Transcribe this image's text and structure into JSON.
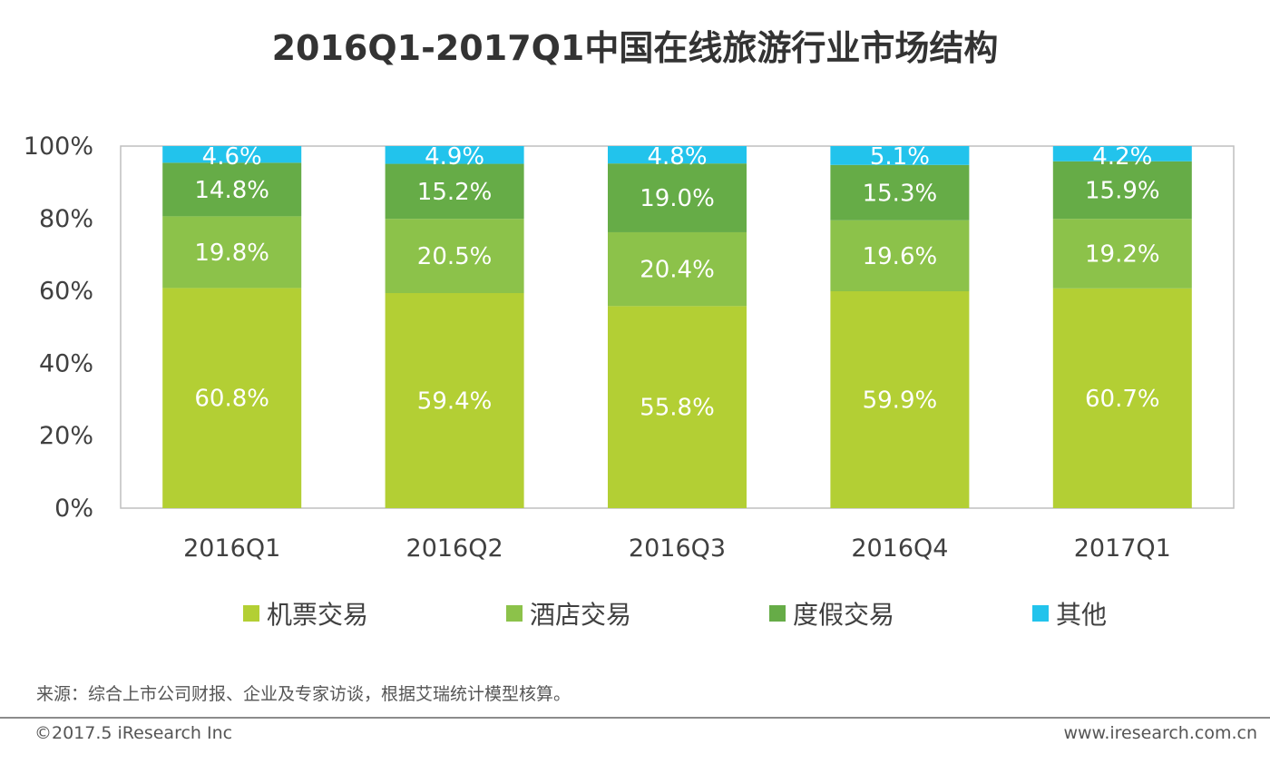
{
  "page": {
    "title": "2016Q1-2017Q1中国在线旅游行业市场结构",
    "source": "来源：综合上市公司财报、企业及专家访谈，根据艾瑞统计模型核算。",
    "copyright": "©2017.5 iResearch Inc",
    "website": "www.iresearch.com.cn"
  },
  "chart_data": {
    "type": "bar",
    "stacked": true,
    "percent": true,
    "title": "2016Q1-2017Q1中国在线旅游行业市场结构",
    "categories": [
      "2016Q1",
      "2016Q2",
      "2016Q3",
      "2016Q4",
      "2017Q1"
    ],
    "ylim": [
      0,
      100
    ],
    "yticks": [
      "0%",
      "20%",
      "40%",
      "60%",
      "80%",
      "100%"
    ],
    "series": [
      {
        "name": "机票交易",
        "color": "#b3cf34",
        "values": [
          60.8,
          59.4,
          55.8,
          59.9,
          60.7
        ],
        "labels": [
          "60.8%",
          "59.4%",
          "55.8%",
          "59.9%",
          "60.7%"
        ]
      },
      {
        "name": "酒店交易",
        "color": "#8cc24a",
        "values": [
          19.8,
          20.5,
          20.4,
          19.6,
          19.2
        ],
        "labels": [
          "19.8%",
          "20.5%",
          "20.4%",
          "19.6%",
          "19.2%"
        ]
      },
      {
        "name": "度假交易",
        "color": "#66ac47",
        "values": [
          14.8,
          15.2,
          19.0,
          15.3,
          15.9
        ],
        "labels": [
          "14.8%",
          "15.2%",
          "19.0%",
          "15.3%",
          "15.9%"
        ]
      },
      {
        "name": "其他",
        "color": "#22c3ec",
        "values": [
          4.6,
          4.9,
          4.8,
          5.1,
          4.2
        ],
        "labels": [
          "4.6%",
          "4.9%",
          "4.8%",
          "5.1%",
          "4.2%"
        ]
      }
    ],
    "grid": false,
    "legend_position": "bottom"
  }
}
